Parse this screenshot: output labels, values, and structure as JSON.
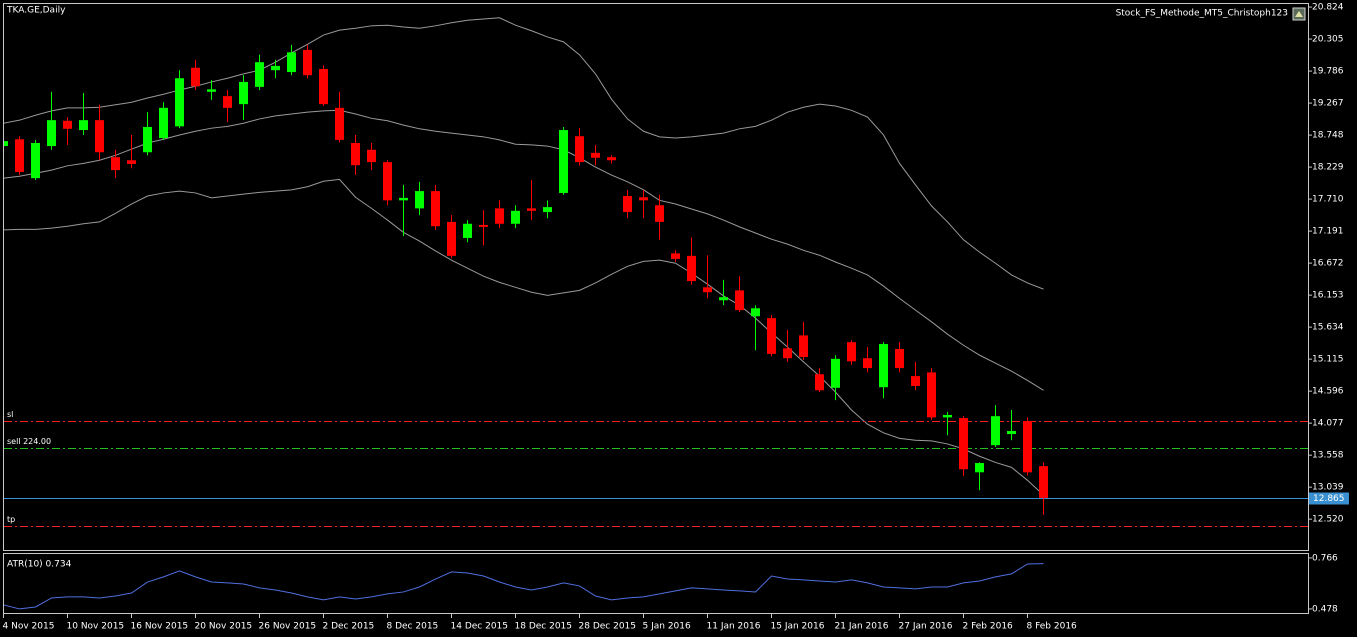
{
  "chart_data": [
    {
      "type": "candlestick",
      "title": "TKA.GE,Daily",
      "indicator_label": "Stock_FS_Methode_MT5_Christoph123",
      "categories": [
        "4 Nov 2015",
        null,
        null,
        null,
        "10 Nov 2015",
        null,
        null,
        null,
        "16 Nov 2015",
        null,
        null,
        null,
        "20 Nov 2015",
        null,
        null,
        null,
        "26 Nov 2015",
        null,
        null,
        null,
        "2 Dec 2015",
        null,
        null,
        null,
        "8 Dec 2015",
        null,
        null,
        null,
        "14 Dec 2015",
        null,
        null,
        null,
        "18 Dec 2015",
        null,
        null,
        null,
        "28 Dec 2015",
        null,
        null,
        null,
        "5 Jan 2016",
        null,
        null,
        null,
        "11 Jan 2016",
        null,
        null,
        null,
        "15 Jan 2016",
        null,
        null,
        null,
        "21 Jan 2016",
        null,
        null,
        null,
        "27 Jan 2016",
        null,
        null,
        null,
        "2 Feb 2016",
        null,
        null,
        null,
        "8 Feb 2016",
        null
      ],
      "open": [
        18.57,
        18.68,
        18.05,
        18.57,
        18.98,
        18.83,
        18.99,
        18.39,
        18.34,
        18.47,
        18.7,
        18.89,
        19.84,
        19.45,
        19.38,
        19.25,
        19.53,
        19.8,
        19.77,
        20.13,
        19.82,
        19.19,
        18.62,
        18.51,
        18.31,
        17.69,
        17.56,
        17.84,
        17.34,
        17.08,
        17.29,
        17.56,
        17.31,
        17.56,
        17.5,
        17.81,
        18.73,
        18.46,
        18.39,
        17.76,
        17.74,
        17.61,
        16.83,
        16.79,
        16.28,
        16.07,
        16.23,
        15.81,
        15.78,
        15.29,
        15.5,
        14.87,
        14.65,
        15.39,
        15.13,
        14.66,
        15.28,
        14.84,
        14.9,
        14.17,
        14.16,
        13.28,
        13.72,
        13.9,
        14.11,
        13.38
      ],
      "high": [
        18.7,
        18.73,
        18.67,
        19.45,
        19.04,
        19.43,
        19.24,
        18.51,
        18.75,
        19.12,
        19.28,
        19.8,
        19.97,
        19.64,
        19.48,
        19.72,
        20.05,
        19.97,
        20.21,
        20.21,
        19.88,
        19.45,
        18.75,
        18.62,
        18.34,
        17.94,
        17.99,
        17.94,
        17.45,
        17.37,
        17.53,
        17.69,
        17.61,
        18.02,
        17.69,
        18.88,
        18.86,
        18.59,
        18.42,
        17.86,
        17.86,
        17.78,
        16.88,
        17.09,
        16.8,
        16.4,
        16.46,
        15.99,
        15.83,
        15.59,
        15.72,
        14.97,
        15.18,
        15.42,
        15.31,
        15.39,
        15.39,
        15.07,
        14.97,
        14.26,
        14.19,
        13.44,
        14.37,
        14.29,
        14.17,
        13.44
      ],
      "low": [
        18.51,
        18.1,
        18.02,
        18.51,
        18.59,
        18.75,
        18.34,
        18.05,
        18.21,
        18.42,
        18.67,
        18.86,
        19.48,
        19.32,
        18.96,
        18.99,
        19.48,
        19.67,
        19.72,
        19.67,
        19.22,
        18.63,
        18.1,
        18.18,
        17.61,
        17.11,
        17.45,
        17.21,
        16.75,
        17.01,
        16.96,
        17.24,
        17.24,
        17.37,
        17.4,
        17.78,
        18.26,
        18.26,
        18.29,
        17.4,
        17.4,
        17.05,
        16.69,
        16.32,
        16.1,
        15.99,
        15.88,
        15.26,
        15.16,
        15.07,
        15.1,
        14.58,
        14.45,
        15.02,
        14.9,
        14.48,
        14.9,
        14.61,
        14.13,
        13.88,
        13.22,
        12.99,
        13.69,
        13.8,
        13.23,
        12.59
      ],
      "close": [
        18.65,
        18.15,
        18.62,
        18.99,
        18.85,
        18.99,
        18.47,
        18.18,
        18.28,
        18.88,
        19.19,
        19.67,
        19.54,
        19.49,
        19.19,
        19.61,
        19.93,
        19.87,
        20.09,
        19.72,
        19.25,
        18.67,
        18.26,
        18.31,
        17.69,
        17.73,
        17.84,
        17.27,
        16.79,
        17.31,
        17.26,
        17.31,
        17.52,
        17.52,
        17.58,
        18.83,
        18.31,
        18.38,
        18.34,
        17.5,
        17.69,
        17.34,
        16.74,
        16.38,
        16.2,
        16.12,
        15.91,
        15.94,
        15.2,
        15.13,
        15.15,
        14.61,
        15.12,
        15.08,
        14.97,
        15.36,
        14.97,
        14.68,
        14.17,
        14.21,
        13.33,
        13.43,
        14.19,
        13.95,
        13.28,
        12.865
      ],
      "up_color": "#00ff00",
      "down_color": "#ff0000",
      "series": [
        {
          "color": "#9a9a9a",
          "values": [
            18.94,
            18.99,
            19.07,
            19.14,
            19.19,
            19.19,
            19.2,
            19.24,
            19.28,
            19.35,
            19.41,
            19.48,
            19.54,
            19.61,
            19.67,
            19.74,
            19.8,
            19.93,
            20.08,
            20.22,
            20.37,
            20.45,
            20.48,
            20.52,
            20.53,
            20.5,
            20.48,
            20.52,
            20.57,
            20.61,
            20.63,
            20.65,
            20.53,
            20.44,
            20.34,
            20.26,
            20.05,
            19.74,
            19.33,
            19.01,
            18.81,
            18.72,
            18.7,
            18.72,
            18.75,
            18.78,
            18.85,
            18.89,
            18.99,
            19.12,
            19.2,
            19.25,
            19.22,
            19.15,
            19.04,
            18.75,
            18.29,
            17.94,
            17.6,
            17.34,
            17.05,
            16.85,
            16.67,
            16.48,
            16.35,
            16.25
          ]
        },
        {
          "color": "#9a9a9a",
          "values": [
            18.05,
            18.08,
            18.13,
            18.18,
            18.25,
            18.29,
            18.34,
            18.42,
            18.52,
            18.62,
            18.68,
            18.75,
            18.81,
            18.86,
            18.89,
            18.94,
            19.01,
            19.06,
            19.09,
            19.12,
            19.14,
            19.15,
            19.09,
            19.02,
            18.98,
            18.91,
            18.85,
            18.81,
            18.78,
            18.75,
            18.72,
            18.67,
            18.6,
            18.59,
            18.57,
            18.51,
            18.38,
            18.23,
            18.1,
            17.99,
            17.86,
            17.69,
            17.63,
            17.55,
            17.47,
            17.37,
            17.26,
            17.16,
            17.06,
            16.98,
            16.88,
            16.8,
            16.69,
            16.59,
            16.48,
            16.3,
            16.1,
            15.91,
            15.72,
            15.52,
            15.34,
            15.18,
            15.05,
            14.92,
            14.77,
            14.61
          ]
        },
        {
          "color": "#9a9a9a",
          "values": [
            17.21,
            17.22,
            17.22,
            17.24,
            17.27,
            17.31,
            17.34,
            17.48,
            17.63,
            17.76,
            17.81,
            17.84,
            17.81,
            17.73,
            17.76,
            17.79,
            17.82,
            17.84,
            17.86,
            17.91,
            18.0,
            18.03,
            17.74,
            17.56,
            17.37,
            17.17,
            17.03,
            16.87,
            16.72,
            16.59,
            16.46,
            16.36,
            16.28,
            16.2,
            16.15,
            16.19,
            16.23,
            16.35,
            16.49,
            16.62,
            16.7,
            16.72,
            16.67,
            16.51,
            16.33,
            16.14,
            15.99,
            15.78,
            15.54,
            15.31,
            15.07,
            14.84,
            14.58,
            14.29,
            14.06,
            13.92,
            13.83,
            13.8,
            13.79,
            13.74,
            13.66,
            13.54,
            13.44,
            13.36,
            13.15,
            12.91
          ]
        }
      ],
      "levels": [
        {
          "label": "sl",
          "value": 14.11,
          "color": "#ff2020"
        },
        {
          "label": "sell 224.00",
          "value": 13.67,
          "color": "#20c020"
        },
        {
          "label": "tp",
          "value": 12.41,
          "color": "#ff2020"
        }
      ],
      "last_price": 12.865,
      "last_price_color": "#3a8fd0",
      "ylim": [
        12.02,
        20.89
      ],
      "yticks": [
        20.824,
        20.305,
        19.786,
        19.267,
        18.748,
        18.229,
        {
          "value": 17.71,
          "label": "17.710"
        },
        17.191,
        16.672,
        16.153,
        15.634,
        15.115,
        14.596,
        14.077,
        13.558,
        13.039,
        {
          "value": 12.52,
          "label": "12.520"
        }
      ]
    },
    {
      "type": "line",
      "title": "ATR(10) 0.734",
      "color": "#4f6fe0",
      "values": [
        0.501,
        0.478,
        0.489,
        0.54,
        0.546,
        0.546,
        0.54,
        0.551,
        0.568,
        0.63,
        0.659,
        0.693,
        0.659,
        0.63,
        0.625,
        0.619,
        0.597,
        0.585,
        0.568,
        0.546,
        0.529,
        0.546,
        0.534,
        0.546,
        0.563,
        0.574,
        0.602,
        0.647,
        0.687,
        0.681,
        0.664,
        0.63,
        0.602,
        0.585,
        0.602,
        0.625,
        0.608,
        0.551,
        0.529,
        0.54,
        0.546,
        0.563,
        0.58,
        0.597,
        0.591,
        0.585,
        0.58,
        0.574,
        0.664,
        0.647,
        0.642,
        0.636,
        0.63,
        0.642,
        0.625,
        0.602,
        0.597,
        0.591,
        0.602,
        0.602,
        0.625,
        0.636,
        0.659,
        0.676,
        0.732,
        0.734
      ],
      "ylim": [
        0.455,
        0.794
      ],
      "yticks": [
        0.766,
        0.478
      ]
    }
  ]
}
